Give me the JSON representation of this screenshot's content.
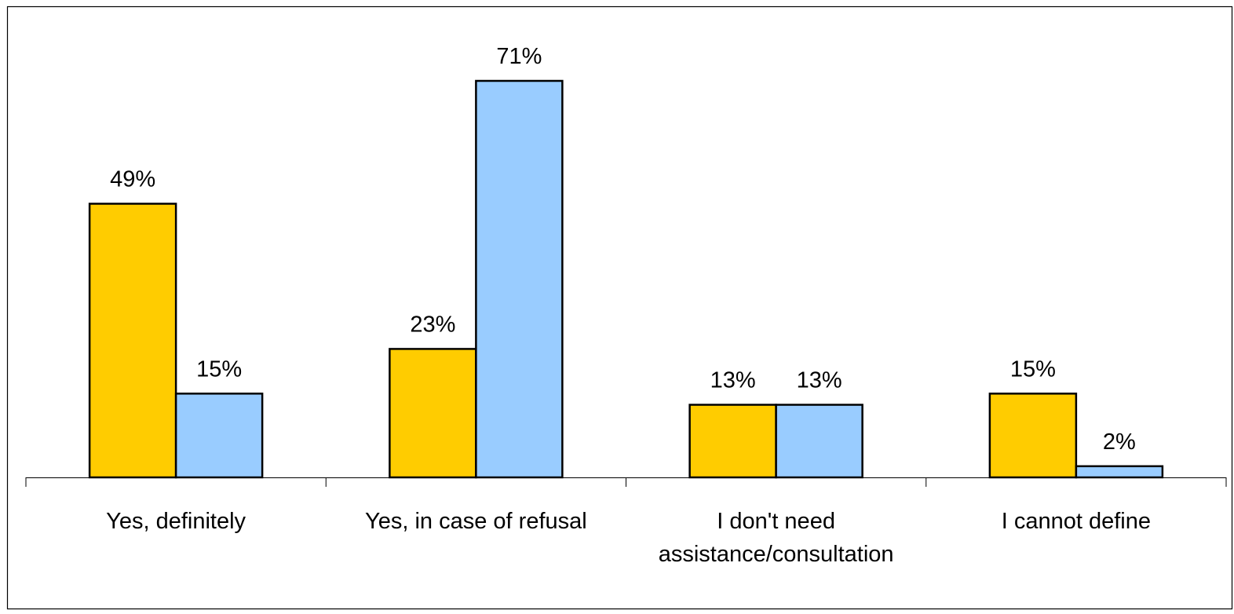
{
  "chart_data": {
    "type": "bar",
    "title": "",
    "xlabel": "",
    "ylabel": "",
    "ylim": [
      0,
      80
    ],
    "grid": false,
    "legend": "none",
    "categories": [
      [
        "Yes, definitely"
      ],
      [
        "Yes, in case of refusal"
      ],
      [
        "I don't need",
        "assistance/consultation"
      ],
      [
        "I cannot define"
      ]
    ],
    "series": [
      {
        "color": "#FFCC00",
        "values": [
          49,
          23,
          13,
          15
        ],
        "labels": [
          "49%",
          "23%",
          "13%",
          "15%"
        ]
      },
      {
        "color": "#99CCFF",
        "values": [
          15,
          71,
          13,
          2
        ],
        "labels": [
          "15%",
          "71%",
          "13%",
          "2%"
        ]
      }
    ]
  }
}
